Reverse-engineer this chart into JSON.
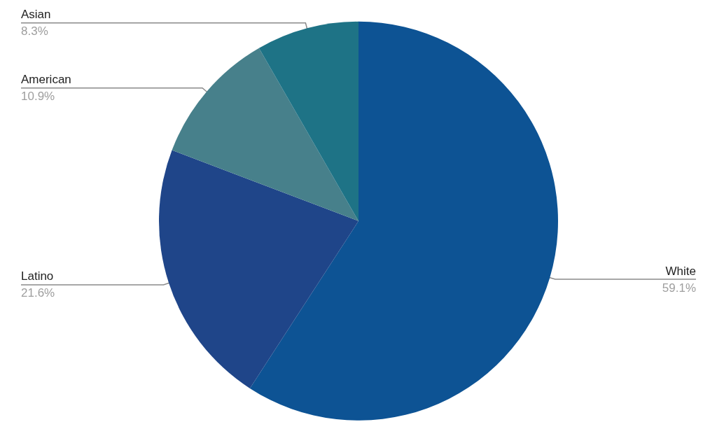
{
  "chart_data": {
    "type": "pie",
    "categories": [
      "White",
      "Latino",
      "American",
      "Asian"
    ],
    "values": [
      59.1,
      21.6,
      10.9,
      8.3
    ],
    "value_labels": [
      "59.1%",
      "21.6%",
      "10.9%",
      "8.3%"
    ],
    "colors": [
      "#0d5394",
      "#1f4589",
      "#47808b",
      "#1e7386"
    ]
  }
}
